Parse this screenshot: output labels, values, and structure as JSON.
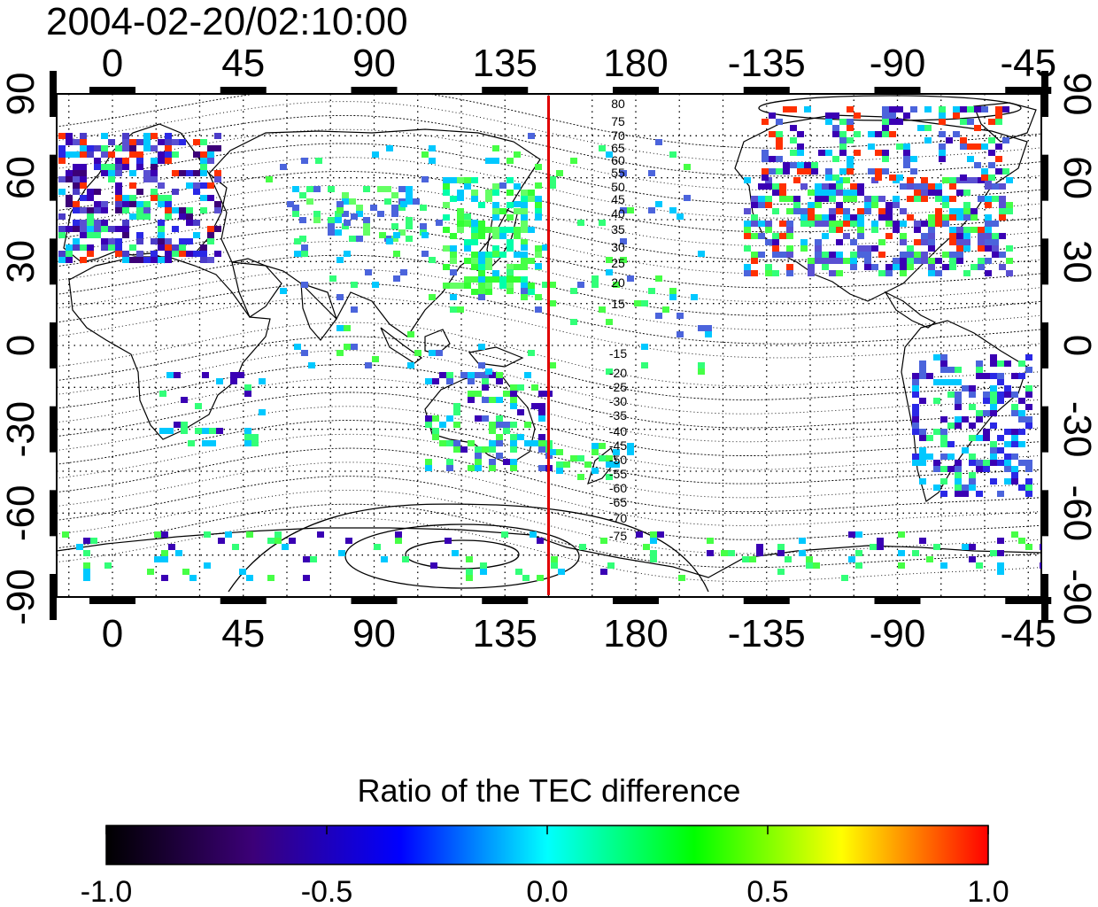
{
  "map": {
    "timestamp": "2004-02-20/02:10:00",
    "longitude_ticks": [
      "0",
      "45",
      "90",
      "135",
      "180",
      "-135",
      "-90",
      "-45"
    ],
    "latitude_ticks": [
      "-90",
      "-60",
      "-30",
      "0",
      "30",
      "60",
      "90"
    ],
    "contour_labels_north": [
      "80",
      "75",
      "70",
      "65",
      "60",
      "55",
      "50",
      "45",
      "40",
      "35",
      "30",
      "25",
      "20",
      "15"
    ],
    "contour_labels_south": [
      "-15",
      "-20",
      "-25",
      "-30",
      "-35",
      "-40",
      "-45",
      "-50",
      "-55",
      "-60",
      "-65",
      "-70",
      "-75"
    ],
    "marker_line_longitude": 150,
    "marker_line_color": "#e00000"
  },
  "colorbar": {
    "title": "Ratio of the TEC difference",
    "range": [
      -1.0,
      1.0
    ],
    "tick_labels": [
      "-1.0",
      "-0.5",
      "0.0",
      "0.5",
      "1.0"
    ],
    "colors": [
      "#000000",
      "#3c0078",
      "#0000ff",
      "#00ffff",
      "#00ff00",
      "#ffff00",
      "#ff0000"
    ]
  }
}
